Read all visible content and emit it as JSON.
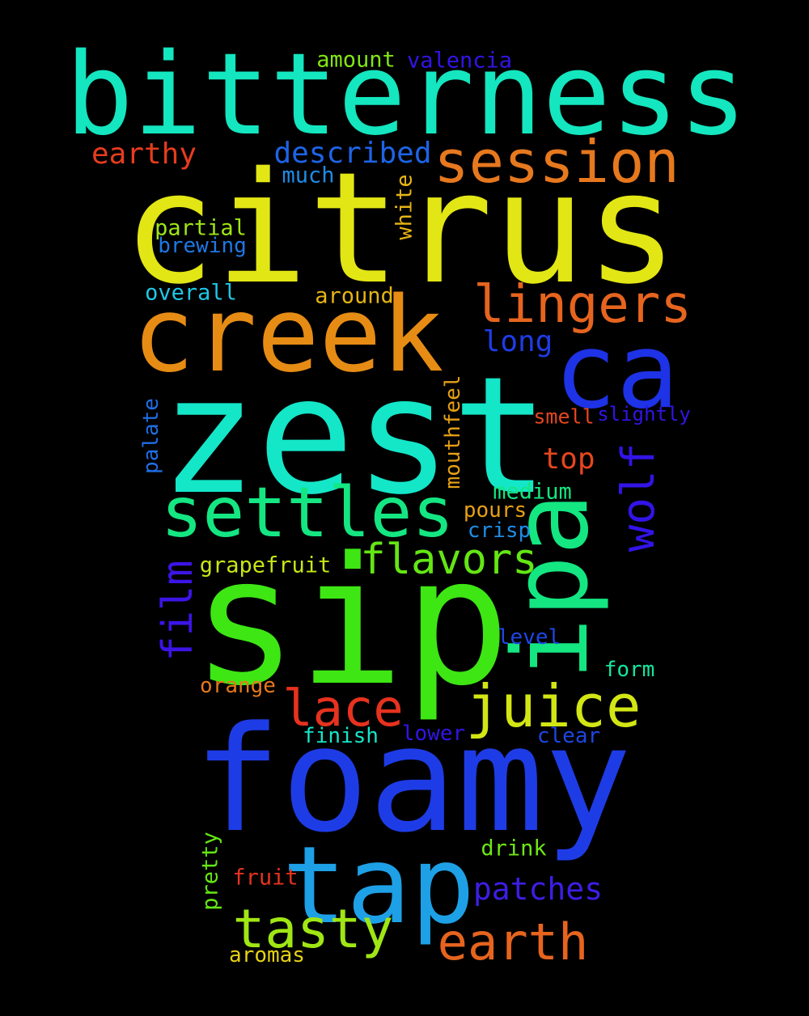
{
  "words": [
    {
      "text": "bitterness",
      "color": "#14e6bf"
    },
    {
      "text": "citrus",
      "color": "#e2e614"
    },
    {
      "text": "creek",
      "color": "#e68c14"
    },
    {
      "text": "zest",
      "color": "#14e6c8"
    },
    {
      "text": "sip",
      "color": "#3ee614"
    },
    {
      "text": "foamy",
      "color": "#1e3ce6"
    },
    {
      "text": "tap",
      "color": "#1ea0e6"
    },
    {
      "text": "ca",
      "color": "#1e32e6"
    },
    {
      "text": "ipa",
      "color": "#14e682"
    },
    {
      "text": "settles",
      "color": "#14e682"
    },
    {
      "text": "session",
      "color": "#e6781e"
    },
    {
      "text": "lingers",
      "color": "#e6641e"
    },
    {
      "text": "juice",
      "color": "#d2e614"
    },
    {
      "text": "lace",
      "color": "#e6321e"
    },
    {
      "text": "tasty",
      "color": "#a0e614"
    },
    {
      "text": "earth",
      "color": "#e6641e"
    },
    {
      "text": "wolf",
      "color": "#3214e6"
    },
    {
      "text": "film",
      "color": "#3c14e6"
    },
    {
      "text": "flavors",
      "color": "#64e614"
    },
    {
      "text": "patches",
      "color": "#3c1ee6"
    },
    {
      "text": "described",
      "color": "#1e64e6"
    },
    {
      "text": "earthy",
      "color": "#e63c1e"
    },
    {
      "text": "long",
      "color": "#1e3ce6"
    },
    {
      "text": "top",
      "color": "#e6461e"
    },
    {
      "text": "amount",
      "color": "#82e614"
    },
    {
      "text": "valencia",
      "color": "#3214e6"
    },
    {
      "text": "much",
      "color": "#1e8ce6"
    },
    {
      "text": "white",
      "color": "#e6b414"
    },
    {
      "text": "partial",
      "color": "#a0e614"
    },
    {
      "text": "brewing",
      "color": "#1e78e6"
    },
    {
      "text": "overall",
      "color": "#1ec8e6"
    },
    {
      "text": "around",
      "color": "#e6b414"
    },
    {
      "text": "smell",
      "color": "#e6461e"
    },
    {
      "text": "slightly",
      "color": "#3214e6"
    },
    {
      "text": "palate",
      "color": "#1e6ee6"
    },
    {
      "text": "mouthfeel",
      "color": "#e6a014"
    },
    {
      "text": "medium",
      "color": "#14e682"
    },
    {
      "text": "pours",
      "color": "#e6a014"
    },
    {
      "text": "crisp",
      "color": "#1e8ce6"
    },
    {
      "text": "grapefruit",
      "color": "#c8e614"
    },
    {
      "text": "level",
      "color": "#1e46e6"
    },
    {
      "text": "form",
      "color": "#14e6a0"
    },
    {
      "text": "orange",
      "color": "#e6781e"
    },
    {
      "text": "finish",
      "color": "#14e6c8"
    },
    {
      "text": "lower",
      "color": "#3214e6"
    },
    {
      "text": "clear",
      "color": "#1e46e6"
    },
    {
      "text": "drink",
      "color": "#6ee614"
    },
    {
      "text": "pretty",
      "color": "#64e614"
    },
    {
      "text": "fruit",
      "color": "#e6321e"
    },
    {
      "text": "aromas",
      "color": "#e6d214"
    }
  ]
}
